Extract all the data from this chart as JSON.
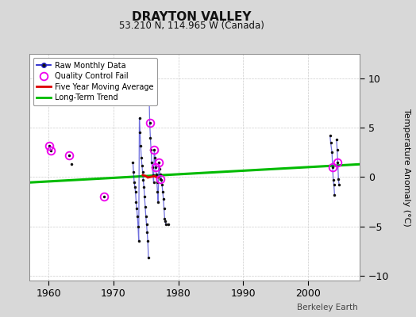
{
  "title": "DRAYTON VALLEY",
  "subtitle": "53.210 N, 114.965 W (Canada)",
  "ylabel": "Temperature Anomaly (°C)",
  "credit": "Berkeley Earth",
  "xlim": [
    1957,
    2008
  ],
  "ylim": [
    -10.5,
    12.5
  ],
  "yticks": [
    -10,
    -5,
    0,
    5,
    10
  ],
  "xticks": [
    1960,
    1970,
    1980,
    1990,
    2000
  ],
  "bg_color": "#d8d8d8",
  "plot_bg_color": "#ffffff",
  "raw_color": "#2222cc",
  "ma_color": "#dd0000",
  "qc_color": "#ee00ee",
  "marker_color": "#111111",
  "long_trend_color": "#00bb00",
  "segments": [
    {
      "x": [
        1960.1,
        1960.35
      ],
      "y": [
        3.2,
        2.7
      ]
    },
    {
      "x": [
        1963.2
      ],
      "y": [
        2.2
      ]
    },
    {
      "x": [
        1963.5
      ],
      "y": [
        1.3
      ]
    },
    {
      "x": [
        1968.5
      ],
      "y": [
        -2.0
      ]
    },
    {
      "x": [
        1973.0,
        1973.1,
        1973.2,
        1973.3,
        1973.4,
        1973.5,
        1973.6,
        1973.7,
        1973.8,
        1973.9,
        1974.0,
        1974.1,
        1974.2,
        1974.3,
        1974.4,
        1974.5,
        1974.6,
        1974.7,
        1974.8,
        1974.9,
        1975.0,
        1975.1,
        1975.2,
        1975.3,
        1975.4
      ],
      "y": [
        1.5,
        0.5,
        -0.5,
        -1.0,
        -1.5,
        -2.5,
        -3.2,
        -4.0,
        -5.0,
        -6.5,
        6.0,
        4.5,
        3.2,
        2.0,
        1.2,
        0.5,
        -0.3,
        -1.0,
        -2.0,
        -3.0,
        -4.0,
        -4.8,
        -5.6,
        -6.5,
        -8.2
      ]
    },
    {
      "x": [
        1975.5,
        1975.6,
        1975.7,
        1975.8,
        1975.9,
        1976.0,
        1976.1,
        1976.2,
        1976.3,
        1976.4,
        1976.5,
        1976.6,
        1976.7,
        1976.8,
        1976.9,
        1977.0,
        1977.1,
        1977.2,
        1977.3,
        1977.4,
        1977.5,
        1977.6,
        1977.7,
        1977.8,
        1977.9,
        1978.0,
        1978.1
      ],
      "y": [
        8.5,
        5.5,
        4.0,
        2.8,
        1.5,
        1.0,
        0.2,
        -0.5,
        2.8,
        2.0,
        1.0,
        0.3,
        -0.5,
        -1.5,
        -2.5,
        1.5,
        0.8,
        -0.2,
        0.3,
        -0.3,
        -0.8,
        -1.5,
        -2.2,
        -3.2,
        -4.2,
        -4.5,
        -4.8
      ]
    },
    {
      "x": [
        1978.5
      ],
      "y": [
        -4.8
      ]
    },
    {
      "x": [
        2003.4,
        2003.5,
        2003.7,
        2003.8,
        2003.9,
        2004.0,
        2004.1
      ],
      "y": [
        4.2,
        3.5,
        2.5,
        1.0,
        -0.3,
        -0.8,
        -1.8
      ]
    },
    {
      "x": [
        2004.4,
        2004.5,
        2004.6,
        2004.7,
        2004.8
      ],
      "y": [
        3.8,
        2.8,
        1.5,
        -0.2,
        -0.8
      ]
    }
  ],
  "qc_fail_x": [
    1960.1,
    1960.35,
    1963.2,
    1968.5,
    1975.6,
    1976.3,
    1976.5,
    1977.0,
    1977.2,
    2003.8,
    2004.6
  ],
  "qc_fail_y": [
    3.2,
    2.7,
    2.2,
    -2.0,
    5.5,
    2.8,
    1.0,
    1.5,
    -0.2,
    1.0,
    1.5
  ],
  "five_year_ma_x": [
    1974.5,
    1975.0,
    1975.3,
    1975.6,
    1976.0,
    1976.3,
    1976.6,
    1977.0
  ],
  "five_year_ma_y": [
    0.2,
    0.1,
    -0.05,
    0.0,
    0.05,
    0.1,
    0.0,
    -0.05
  ],
  "trend_x": [
    1957,
    2008
  ],
  "trend_y": [
    -0.55,
    1.3
  ]
}
